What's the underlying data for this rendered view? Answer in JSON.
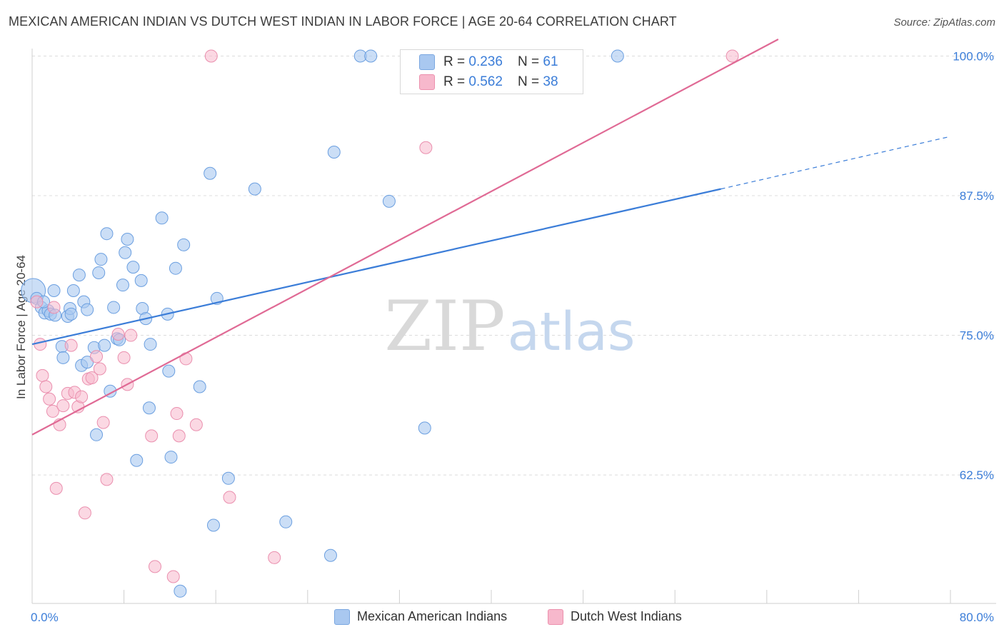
{
  "title": "MEXICAN AMERICAN INDIAN VS DUTCH WEST INDIAN IN LABOR FORCE | AGE 20-64 CORRELATION CHART",
  "source": "Source: ZipAtlas.com",
  "watermark": {
    "zip": "ZIP",
    "atlas": "atlas"
  },
  "legend": {
    "series1": {
      "r_label": "R = ",
      "r_value": "0.236",
      "n_label": "N = ",
      "n_value": "61"
    },
    "series2": {
      "r_label": "R = ",
      "r_value": "0.562",
      "n_label": "N = ",
      "n_value": "38"
    }
  },
  "chart_data": {
    "type": "scatter",
    "title": "MEXICAN AMERICAN INDIAN VS DUTCH WEST INDIAN IN LABOR FORCE | AGE 20-64 CORRELATION CHART",
    "xlabel": "",
    "ylabel": "In Labor Force | Age 20-64",
    "xlim": [
      0,
      80
    ],
    "ylim": [
      51.0,
      101.5
    ],
    "x_tick_labels": [
      {
        "value": 0,
        "label": "0.0%"
      },
      {
        "value": 80,
        "label": "80.0%"
      }
    ],
    "y_tick_labels": [
      {
        "value": 62.5,
        "label": "62.5%"
      },
      {
        "value": 75.0,
        "label": "75.0%"
      },
      {
        "value": 87.5,
        "label": "87.5%"
      },
      {
        "value": 100.0,
        "label": "100.0%"
      }
    ],
    "colors": {
      "series1": "#a9c8f0",
      "series1_line": "#3b7dd8",
      "series2": "#f7b8cc",
      "series2_line": "#e06a95"
    },
    "series": [
      {
        "name": "Mexican American Indians",
        "r": 0.236,
        "n": 61,
        "trend": {
          "x0": 0,
          "y0": 74.2,
          "x1": 60,
          "y1": 88.1,
          "dash_to_x": 80,
          "dash_to_y": 92.8
        },
        "points": [
          [
            0.1,
            79.0
          ],
          [
            0.4,
            78.3
          ],
          [
            0.8,
            77.5
          ],
          [
            1.1,
            77.0
          ],
          [
            1.4,
            77.2
          ],
          [
            1.6,
            76.9
          ],
          [
            1.9,
            79.0
          ],
          [
            2.6,
            74.0
          ],
          [
            2.7,
            73.0
          ],
          [
            3.1,
            76.7
          ],
          [
            3.3,
            77.4
          ],
          [
            3.4,
            76.9
          ],
          [
            3.6,
            79.0
          ],
          [
            4.1,
            80.4
          ],
          [
            4.3,
            72.3
          ],
          [
            4.5,
            78.0
          ],
          [
            4.8,
            77.3
          ],
          [
            4.8,
            72.6
          ],
          [
            5.4,
            73.9
          ],
          [
            5.6,
            66.1
          ],
          [
            5.8,
            80.6
          ],
          [
            6.0,
            81.8
          ],
          [
            6.3,
            74.1
          ],
          [
            6.5,
            84.1
          ],
          [
            6.8,
            70.0
          ],
          [
            7.1,
            77.5
          ],
          [
            7.4,
            74.7
          ],
          [
            7.6,
            74.6
          ],
          [
            7.9,
            79.5
          ],
          [
            8.1,
            82.4
          ],
          [
            8.3,
            83.6
          ],
          [
            8.8,
            81.1
          ],
          [
            9.1,
            63.8
          ],
          [
            9.5,
            79.9
          ],
          [
            9.6,
            77.4
          ],
          [
            9.9,
            76.5
          ],
          [
            10.2,
            68.5
          ],
          [
            10.3,
            74.2
          ],
          [
            11.3,
            85.5
          ],
          [
            11.8,
            76.9
          ],
          [
            11.9,
            71.8
          ],
          [
            12.1,
            64.1
          ],
          [
            12.5,
            81.0
          ],
          [
            13.2,
            83.1
          ],
          [
            14.6,
            70.4
          ],
          [
            15.5,
            89.5
          ],
          [
            15.8,
            58.0
          ],
          [
            16.1,
            78.3
          ],
          [
            17.1,
            62.2
          ],
          [
            19.4,
            88.1
          ],
          [
            22.1,
            58.3
          ],
          [
            26.0,
            55.3
          ],
          [
            26.3,
            91.4
          ],
          [
            28.6,
            100.0
          ],
          [
            29.5,
            100.0
          ],
          [
            31.1,
            87.0
          ],
          [
            34.2,
            66.7
          ],
          [
            51.0,
            100.0
          ],
          [
            12.9,
            52.1
          ],
          [
            2.0,
            76.8
          ],
          [
            1.0,
            78.0
          ]
        ]
      },
      {
        "name": "Dutch West Indians",
        "r": 0.562,
        "n": 38,
        "trend": {
          "x0": 0,
          "y0": 66.1,
          "x1": 65,
          "y1": 101.5
        },
        "points": [
          [
            0.4,
            78.0
          ],
          [
            0.7,
            74.2
          ],
          [
            0.9,
            71.4
          ],
          [
            1.2,
            70.4
          ],
          [
            1.5,
            69.3
          ],
          [
            1.8,
            68.2
          ],
          [
            2.1,
            61.3
          ],
          [
            2.4,
            67.0
          ],
          [
            2.7,
            68.7
          ],
          [
            3.1,
            69.8
          ],
          [
            3.4,
            74.1
          ],
          [
            3.7,
            69.9
          ],
          [
            4.0,
            68.6
          ],
          [
            4.3,
            69.5
          ],
          [
            4.6,
            59.1
          ],
          [
            4.9,
            71.1
          ],
          [
            5.2,
            71.2
          ],
          [
            5.6,
            73.1
          ],
          [
            5.9,
            72.0
          ],
          [
            6.2,
            67.2
          ],
          [
            6.5,
            62.1
          ],
          [
            7.5,
            75.1
          ],
          [
            8.0,
            73.0
          ],
          [
            8.3,
            70.6
          ],
          [
            8.6,
            75.0
          ],
          [
            10.4,
            66.0
          ],
          [
            10.7,
            54.3
          ],
          [
            12.3,
            53.4
          ],
          [
            12.6,
            68.0
          ],
          [
            12.8,
            66.0
          ],
          [
            13.4,
            72.9
          ],
          [
            14.3,
            67.0
          ],
          [
            17.2,
            60.5
          ],
          [
            21.1,
            55.1
          ],
          [
            15.6,
            100.0
          ],
          [
            34.3,
            91.8
          ],
          [
            61.0,
            100.0
          ],
          [
            1.9,
            77.5
          ]
        ]
      }
    ]
  }
}
